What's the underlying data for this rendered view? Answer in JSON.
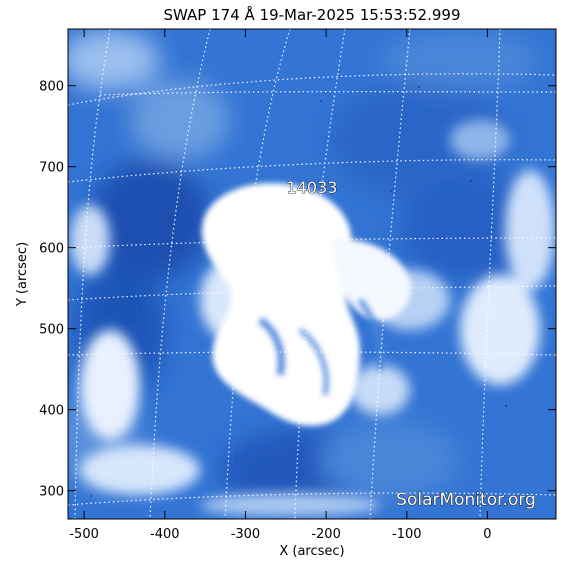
{
  "title": "SWAP 174 Å 19-Mar-2025 15:53:52.999",
  "region_label": "14033",
  "watermark": "SolarMonitor.org",
  "x_axis": {
    "label": "X (arcsec)",
    "ticks": [
      -500,
      -400,
      -300,
      -200,
      -100,
      0
    ],
    "range": [
      -520,
      85
    ]
  },
  "y_axis": {
    "label": "Y (arcsec)",
    "ticks": [
      300,
      400,
      500,
      600,
      700,
      800
    ],
    "range": [
      265,
      870
    ]
  },
  "colors": {
    "background_blue": "#2f6fd0",
    "deep_blue": "#1a4fb0",
    "bright": "#ffffff",
    "grid": "#ffffff"
  }
}
